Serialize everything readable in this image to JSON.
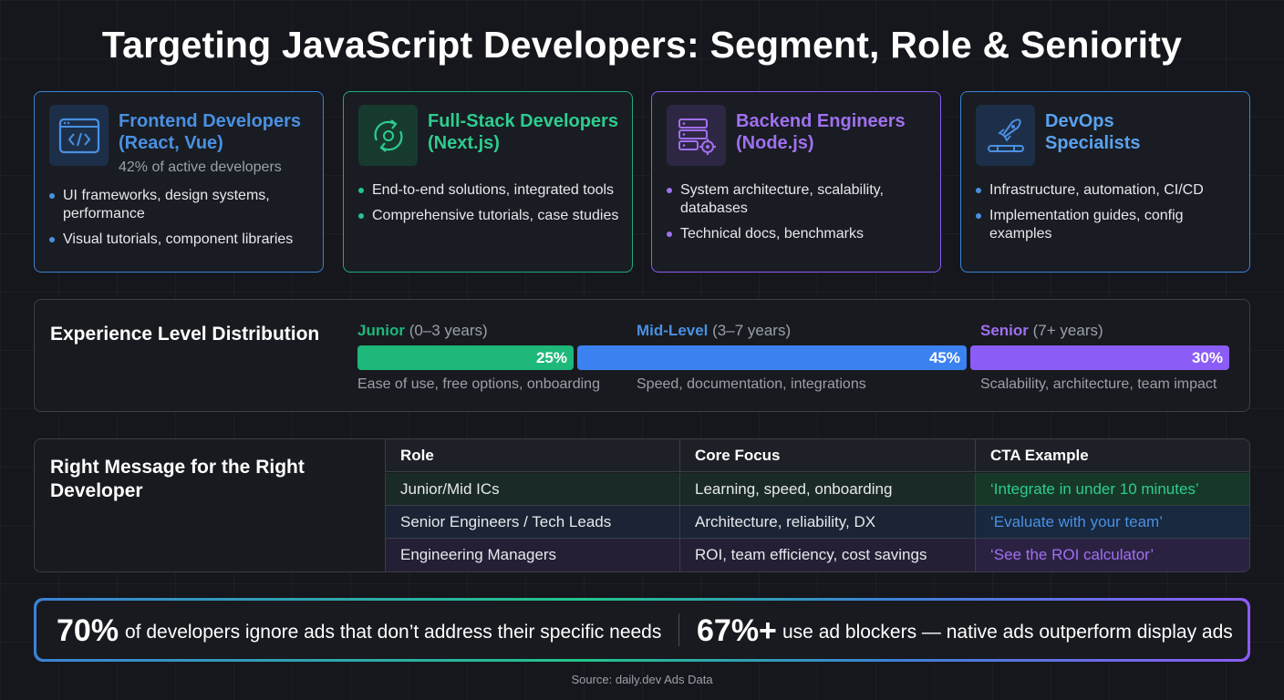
{
  "title": "Targeting JavaScript Developers: Segment, Role & Seniority",
  "colors": {
    "frontend": "#4a90e2",
    "fullstack": "#2ecc8f",
    "backend": "#a070f0",
    "devops": "#5aa2ef"
  },
  "segments": [
    {
      "title_line1": "Frontend Developers",
      "title_line2": "(React, Vue)",
      "subtitle": "42% of active developers",
      "icon": "code-window-icon",
      "bullets": [
        "UI frameworks, design systems, performance",
        "Visual tutorials, component libraries"
      ]
    },
    {
      "title_line1": "Full-Stack Developers",
      "title_line2": "(Next.js)",
      "subtitle": "",
      "icon": "cycle-arrows-icon",
      "bullets": [
        "End-to-end solutions, integrated tools",
        "Comprehensive tutorials, case studies"
      ]
    },
    {
      "title_line1": "Backend Engineers",
      "title_line2": "(Node.js)",
      "subtitle": "",
      "icon": "server-gear-icon",
      "bullets": [
        "System architecture, scalability, databases",
        "Technical docs, benchmarks"
      ]
    },
    {
      "title_line1": "DevOps",
      "title_line2": "Specialists",
      "subtitle": "",
      "icon": "rocket-pipeline-icon",
      "bullets": [
        "Infrastructure, automation, CI/CD",
        "Implementation guides, config examples"
      ]
    }
  ],
  "experience": {
    "title": "Experience Level Distribution",
    "levels": [
      {
        "name": "Junior",
        "range": "(0–3 years)",
        "percent": 25,
        "percent_label": "25%",
        "description": "Ease of use, free options, onboarding",
        "color": "#1db87a"
      },
      {
        "name": "Mid-Level",
        "range": "(3–7 years)",
        "percent": 45,
        "percent_label": "45%",
        "description": "Speed, documentation, integrations",
        "color": "#3b82f0"
      },
      {
        "name": "Senior",
        "range": "(7+ years)",
        "percent": 30,
        "percent_label": "30%",
        "description": "Scalability, architecture, team impact",
        "color": "#8b5cf6"
      }
    ]
  },
  "messaging": {
    "title": "Right Message for the Right Developer",
    "headers": [
      "Role",
      "Core Focus",
      "CTA Example"
    ],
    "rows": [
      [
        "Junior/Mid ICs",
        "Learning, speed, onboarding",
        "‘Integrate in under 10 minutes’"
      ],
      [
        "Senior Engineers / Tech Leads",
        "Architecture, reliability, DX",
        "‘Evaluate with your team’"
      ],
      [
        "Engineering Managers",
        "ROI, team efficiency, cost savings",
        "‘See the ROI calculator’"
      ]
    ]
  },
  "stats": [
    {
      "value": "70%",
      "text": "of developers ignore ads that don’t address their specific needs"
    },
    {
      "value": "67%+",
      "text": "use ad blockers — native ads outperform display ads"
    }
  ],
  "source": "Source: daily.dev Ads Data"
}
